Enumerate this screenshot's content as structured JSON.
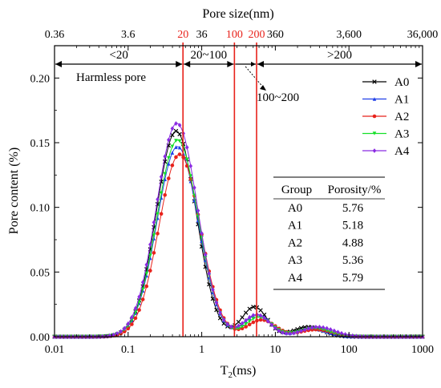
{
  "chart_data": {
    "type": "line",
    "xlabel": "T2(ms)",
    "top_axis_label": "Pore size(nm)",
    "ylabel": "Pore content (%)",
    "x_scale": "log",
    "xlim": [
      0.01,
      1000
    ],
    "ylim": [
      0,
      0.225
    ],
    "x_ticks": [
      0.01,
      0.1,
      1,
      10,
      100,
      1000
    ],
    "x_tick_labels": [
      "0.01",
      "0.1",
      "1",
      "10",
      "100",
      "1000"
    ],
    "y_ticks": [
      0,
      0.05,
      0.1,
      0.15,
      0.2
    ],
    "y_tick_labels": [
      "0.00",
      "0.05",
      "0.10",
      "0.15",
      "0.20"
    ],
    "top_ticks": [
      0.01,
      0.1,
      1,
      10,
      100,
      1000
    ],
    "top_tick_labels": [
      "0.36",
      "3.6",
      "36",
      "360",
      "3,600",
      "36,000"
    ],
    "boundaries": [
      {
        "x": 0.556,
        "label": "20"
      },
      {
        "x": 2.78,
        "label": "100"
      },
      {
        "x": 5.56,
        "label": "200"
      }
    ],
    "regions": [
      {
        "from": 0.01,
        "to": 0.556,
        "label": "<20"
      },
      {
        "from": 0.556,
        "to": 2.78,
        "label": "20~100"
      },
      {
        "from": 5.56,
        "to": 1000,
        "label": ">200"
      }
    ],
    "annotations": {
      "harmless": "Harmless pore",
      "small_region": "100~200"
    },
    "series": [
      {
        "name": "A0",
        "color": "#000000",
        "marker": "x",
        "peak1": {
          "x": 0.45,
          "y": 0.159,
          "w": 0.27
        },
        "peak2": {
          "x": 5.2,
          "y": 0.023,
          "w": 0.17
        },
        "peak3": {
          "x": 28,
          "y": 0.0075,
          "w": 0.2
        }
      },
      {
        "name": "A1",
        "color": "#1f3fe8",
        "marker": "triangle",
        "peak1": {
          "x": 0.47,
          "y": 0.147,
          "w": 0.28
        },
        "peak2": {
          "x": 5.8,
          "y": 0.017,
          "w": 0.18
        },
        "peak3": {
          "x": 32,
          "y": 0.006,
          "w": 0.2
        }
      },
      {
        "name": "A2",
        "color": "#e8221b",
        "marker": "circle",
        "peak1": {
          "x": 0.5,
          "y": 0.141,
          "w": 0.28
        },
        "peak2": {
          "x": 6.5,
          "y": 0.013,
          "w": 0.19
        },
        "peak3": {
          "x": 36,
          "y": 0.0055,
          "w": 0.22
        }
      },
      {
        "name": "A3",
        "color": "#15e028",
        "marker": "triangle-down",
        "peak1": {
          "x": 0.47,
          "y": 0.152,
          "w": 0.28
        },
        "peak2": {
          "x": 6.0,
          "y": 0.015,
          "w": 0.18
        },
        "peak3": {
          "x": 34,
          "y": 0.0065,
          "w": 0.21
        }
      },
      {
        "name": "A4",
        "color": "#8a2be2",
        "marker": "diamond",
        "peak1": {
          "x": 0.46,
          "y": 0.165,
          "w": 0.28
        },
        "peak2": {
          "x": 5.6,
          "y": 0.017,
          "w": 0.18
        },
        "peak3": {
          "x": 38,
          "y": 0.0075,
          "w": 0.22
        }
      }
    ],
    "table": {
      "headers": [
        "Group",
        "Porosity/%"
      ],
      "rows": [
        [
          "A0",
          "5.76"
        ],
        [
          "A1",
          "5.18"
        ],
        [
          "A2",
          "4.88"
        ],
        [
          "A3",
          "5.36"
        ],
        [
          "A4",
          "5.79"
        ]
      ]
    },
    "legend_position": "top-right",
    "grid": false
  }
}
